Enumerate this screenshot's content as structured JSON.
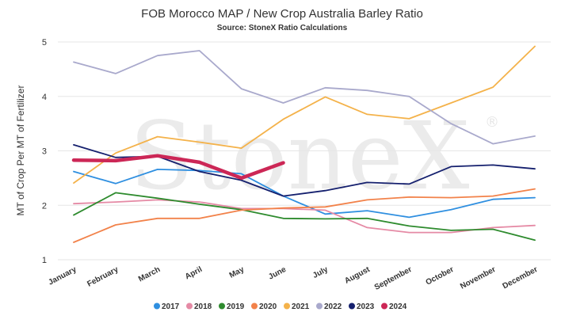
{
  "chart_data": {
    "type": "line",
    "title": "FOB Morocco MAP / New Crop Australia Barley Ratio",
    "subtitle": "Source: StoneX Ratio Calculations",
    "ylabel": "MT of Crop Per MT of Fertilizer",
    "xlabel": "",
    "ylim": [
      1,
      5
    ],
    "yticks": [
      1,
      2,
      3,
      4,
      5
    ],
    "grid": true,
    "legend": "bottom",
    "watermark": "StoneX",
    "watermark_mark": "®",
    "categories": [
      "January",
      "February",
      "March",
      "April",
      "May",
      "June",
      "July",
      "August",
      "September",
      "October",
      "November",
      "December"
    ],
    "series": [
      {
        "name": "2017",
        "color": "#2f8fe0",
        "width": 1.8,
        "values": [
          2.62,
          2.4,
          2.66,
          2.64,
          2.58,
          2.17,
          1.84,
          1.9,
          1.78,
          1.92,
          2.11,
          2.14
        ]
      },
      {
        "name": "2018",
        "color": "#e58aa5",
        "width": 1.8,
        "values": [
          2.03,
          2.06,
          2.1,
          2.06,
          1.94,
          1.94,
          1.91,
          1.59,
          1.5,
          1.5,
          1.59,
          1.63
        ]
      },
      {
        "name": "2019",
        "color": "#2e8b2e",
        "width": 1.8,
        "values": [
          1.82,
          2.23,
          2.13,
          2.02,
          1.92,
          1.76,
          1.75,
          1.76,
          1.62,
          1.54,
          1.56,
          1.36
        ]
      },
      {
        "name": "2020",
        "color": "#f2824a",
        "width": 1.8,
        "values": [
          1.32,
          1.64,
          1.76,
          1.76,
          1.91,
          1.95,
          1.97,
          2.1,
          2.15,
          2.14,
          2.17,
          2.3
        ]
      },
      {
        "name": "2021",
        "color": "#f4b24a",
        "width": 1.8,
        "values": [
          2.41,
          2.96,
          3.26,
          3.16,
          3.05,
          3.58,
          3.99,
          3.67,
          3.59,
          3.88,
          4.17,
          4.92
        ]
      },
      {
        "name": "2022",
        "color": "#a9a9cc",
        "width": 1.8,
        "values": [
          4.63,
          4.42,
          4.75,
          4.84,
          4.14,
          3.88,
          4.16,
          4.11,
          4.0,
          3.5,
          3.13,
          3.27
        ]
      },
      {
        "name": "2023",
        "color": "#15206e",
        "width": 1.8,
        "values": [
          3.11,
          2.88,
          2.9,
          2.62,
          2.46,
          2.17,
          2.27,
          2.42,
          2.39,
          2.71,
          2.74,
          2.67
        ]
      },
      {
        "name": "2024",
        "color": "#cc2756",
        "width": 4.5,
        "values": [
          2.83,
          2.82,
          2.91,
          2.79,
          2.5,
          2.78,
          null,
          null,
          null,
          null,
          null,
          null
        ]
      }
    ]
  }
}
